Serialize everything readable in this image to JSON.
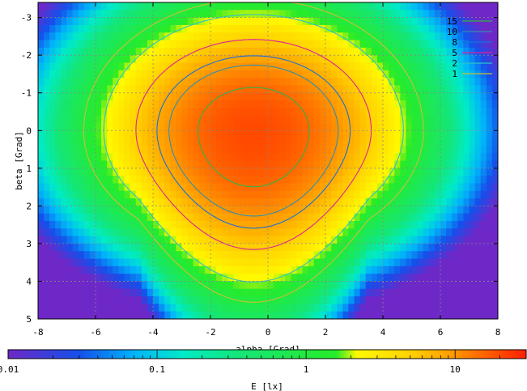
{
  "chart_data": {
    "type": "heatmap",
    "xlabel": "alpha [Grad]",
    "ylabel": "beta [Grad]",
    "xlim": [
      -8,
      8
    ],
    "ylim": [
      -3.4,
      5
    ],
    "y_axis_inverted": true,
    "x_ticks": [
      -8,
      -6,
      -4,
      -2,
      0,
      2,
      4,
      6,
      8
    ],
    "y_ticks": [
      -3,
      -2,
      -1,
      0,
      1,
      2,
      3,
      4,
      5
    ],
    "grid": true,
    "legend_position": "top-right",
    "contour_levels": [
      {
        "label": "15",
        "value": 15,
        "color": "#2db34a"
      },
      {
        "label": "10",
        "value": 10,
        "color": "#2f8fb0"
      },
      {
        "label": "8",
        "value": 8,
        "color": "#1a6fd6"
      },
      {
        "label": "5",
        "value": 5,
        "color": "#e0209a"
      },
      {
        "label": "2",
        "value": 2,
        "color": "#2ac4c8"
      },
      {
        "label": "1",
        "value": 1,
        "color": "#c8c032"
      }
    ],
    "colorbar": {
      "label": "E [lx]",
      "scale": "log",
      "range": [
        0.01,
        30
      ],
      "ticks": [
        {
          "label": "0.01",
          "value": 0.01
        },
        {
          "label": "0.1",
          "value": 0.1
        },
        {
          "label": "1",
          "value": 1
        },
        {
          "label": "10",
          "value": 10
        }
      ]
    },
    "peak": {
      "alpha": -0.5,
      "beta": 0,
      "value": 20
    }
  },
  "colors": {
    "grid": "#888888",
    "axis": "#000000"
  }
}
